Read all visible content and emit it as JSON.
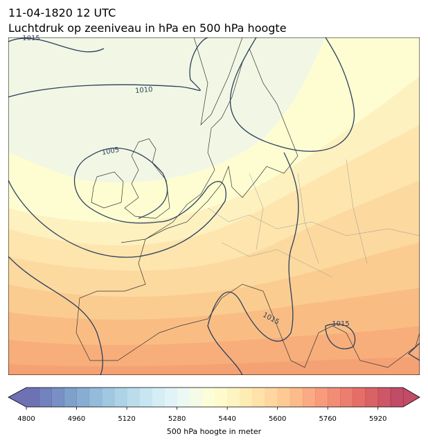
{
  "header": {
    "title": "11-04-1820 12 UTC",
    "subtitle": "Luchtdruk op zeeniveau in hPa en 500 hPa hoogte"
  },
  "map": {
    "contour_labels": [
      "1015",
      "1010",
      "1005",
      "1015",
      "1015"
    ]
  },
  "colorbar": {
    "label": "500 hPa hoogte in meter",
    "range": [
      4800,
      6000
    ],
    "step": 40,
    "ticks": [
      4800,
      4960,
      5120,
      5280,
      5440,
      5600,
      5760,
      5920
    ],
    "colormap": [
      "#313695",
      "#4575b4",
      "#74add1",
      "#abd9e9",
      "#e0f3f8",
      "#ffffbf",
      "#fee090",
      "#fdae61",
      "#f46d43",
      "#d73027",
      "#a50026"
    ],
    "opacity": 0.7
  }
}
